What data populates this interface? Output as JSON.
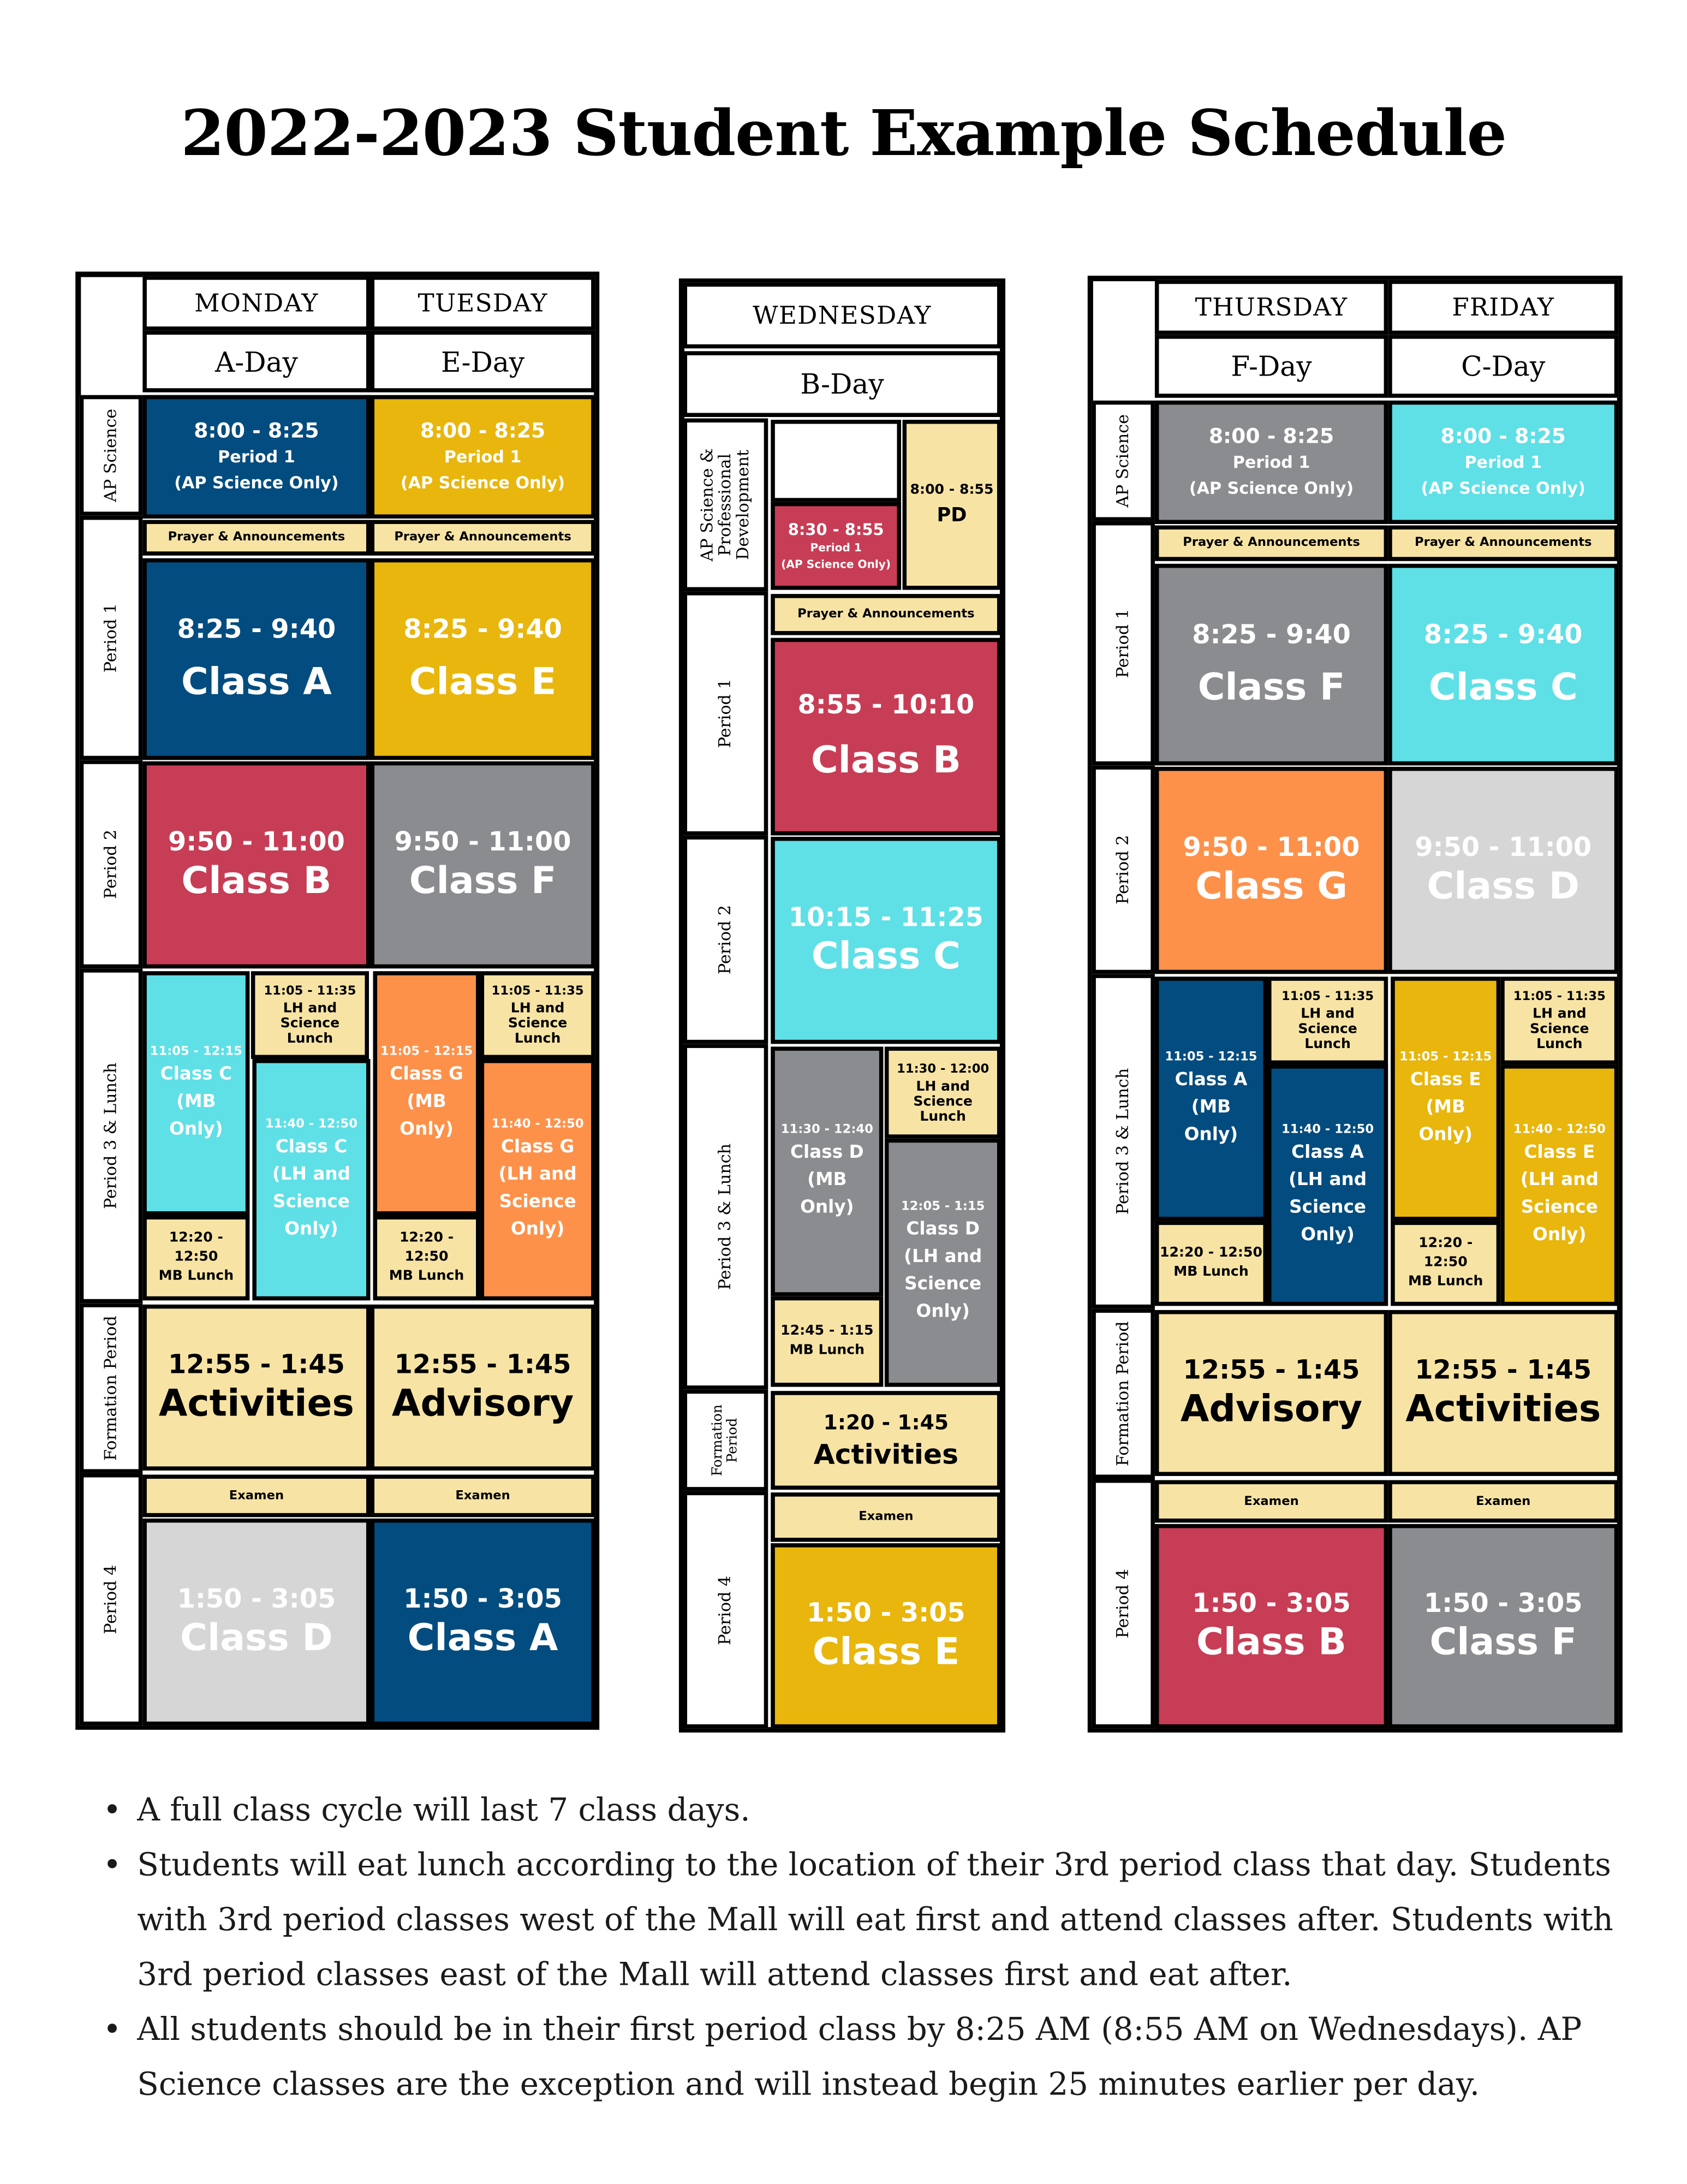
{
  "title": "2022-2023 Student Example Schedule",
  "colors": {
    "navy": "#034c7f",
    "gold": "#e8b60c",
    "red": "#c73d55",
    "gray": "#8b8c8f",
    "cyan": "#5ee0e6",
    "orange": "#fd914a",
    "light_gray": "#d6d6d6",
    "cream": "#f7e4a5"
  },
  "row_labels": {
    "ap_science": "AP Science",
    "ap_science_pd": "AP Science & Professional Development",
    "period_1": "Period 1",
    "period_2": "Period 2",
    "period_3_lunch": "Period 3 & Lunch",
    "formation": "Formation Period",
    "period_4": "Period 4"
  },
  "common": {
    "ap_time": "8:00 - 8:25",
    "ap_period": "Period 1",
    "ap_only": "(AP Science Only)",
    "prayer": "Prayer & Announcements",
    "examen": "Examen",
    "lh_time": "11:05 - 11:35",
    "lh_label": "LH and Science Lunch",
    "mb_time": "11:05 - 12:15",
    "mb_only": "(MB Only)",
    "lhsci_time": "11:40 - 12:50",
    "lhsci_only": "(LH and Science Only)",
    "mblunch_time": "12:20 - 12:50",
    "mblunch_label": "MB Lunch",
    "p1_time": "8:25 - 9:40",
    "p2_time": "9:50 - 11:00",
    "form_time": "12:55 - 1:45",
    "p4_time": "1:50 - 3:05"
  },
  "monday": {
    "day": "MONDAY",
    "letter": "A-Day",
    "p1": "Class A",
    "p2": "Class B",
    "p3": "Class C",
    "form": "Activities",
    "p4": "Class D"
  },
  "tuesday": {
    "day": "TUESDAY",
    "letter": "E-Day",
    "p1": "Class E",
    "p2": "Class F",
    "p3": "Class G",
    "form": "Advisory",
    "p4": "Class A"
  },
  "wednesday": {
    "day": "WEDNESDAY",
    "letter": "B-Day",
    "ap_time": "8:30 - 8:55",
    "pd_time": "8:00 - 8:55",
    "pd_label": "PD",
    "p1_time": "8:55 - 10:10",
    "p1": "Class B",
    "p2_time": "10:15 - 11:25",
    "p2": "Class C",
    "lh_time": "11:30 - 12:00",
    "mb_time": "11:30 - 12:40",
    "lhsci_time": "12:05 - 1:15",
    "mblunch_time": "12:45 - 1:15",
    "p3": "Class D",
    "form_time": "1:20 - 1:45",
    "form": "Activities",
    "p4_time": "1:50 - 3:05",
    "p4": "Class E"
  },
  "thursday": {
    "day": "THURSDAY",
    "letter": "F-Day",
    "p1": "Class F",
    "p2": "Class G",
    "p3": "Class A",
    "form": "Advisory",
    "p4": "Class B"
  },
  "friday": {
    "day": "FRIDAY",
    "letter": "C-Day",
    "p1": "Class C",
    "p2": "Class D",
    "p3": "Class E",
    "form": "Activities",
    "p4": "Class F"
  },
  "notes": [
    "A full class cycle will last 7 class days.",
    "Students will eat lunch according to the location of their 3rd period class that day. Students with 3rd period classes west of the Mall will eat first and attend classes after. Students with 3rd period classes east of the Mall will attend classes first and eat after.",
    "All students should be in their first period class by 8:25 AM (8:55 AM on Wednesdays). AP Science classes are the exception and will instead begin 25 minutes earlier per day."
  ]
}
